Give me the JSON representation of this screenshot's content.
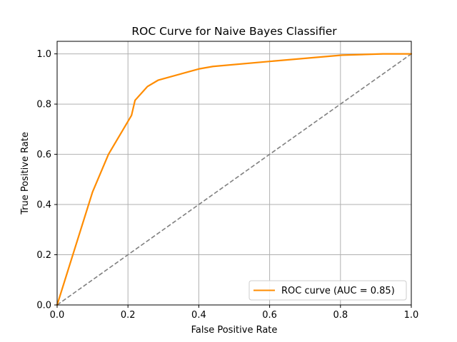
{
  "chart_data": {
    "type": "line",
    "title": "ROC Curve for Naive Bayes Classifier",
    "xlabel": "False Positive Rate",
    "ylabel": "True Positive Rate",
    "xlim": [
      0.0,
      1.0
    ],
    "ylim": [
      0.0,
      1.05
    ],
    "xticks": [
      "0.0",
      "0.2",
      "0.4",
      "0.6",
      "0.8",
      "1.0"
    ],
    "yticks": [
      "0.0",
      "0.2",
      "0.4",
      "0.6",
      "0.8",
      "1.0"
    ],
    "grid": true,
    "legend_position": "lower-right",
    "series": [
      {
        "name": "ROC curve (AUC = 0.85)",
        "color": "#ff8c00",
        "style": "solid",
        "x": [
          0.0,
          0.1,
          0.145,
          0.21,
          0.22,
          0.255,
          0.285,
          0.4,
          0.44,
          0.6,
          0.805,
          0.92,
          1.0
        ],
        "y": [
          0.0,
          0.45,
          0.6,
          0.755,
          0.815,
          0.87,
          0.895,
          0.94,
          0.95,
          0.97,
          0.995,
          1.0,
          1.0
        ]
      },
      {
        "color": "#808080",
        "style": "dashed",
        "x": [
          0.0,
          1.0
        ],
        "y": [
          0.0,
          1.0
        ]
      }
    ]
  }
}
